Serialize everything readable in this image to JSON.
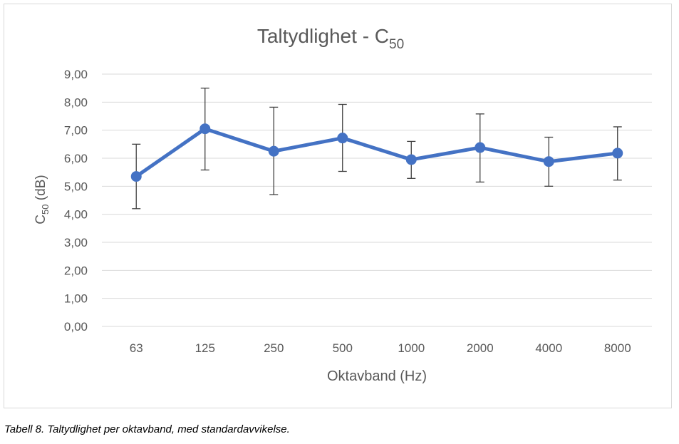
{
  "chart_data": {
    "type": "line",
    "title": "Taltydlighet - C",
    "title_subscript": "50",
    "ylabel": "C",
    "ylabel_subscript": "50",
    "ylabel_suffix": " (dB)",
    "xlabel": "Oktavband (Hz)",
    "categories": [
      "63",
      "125",
      "250",
      "500",
      "1000",
      "2000",
      "4000",
      "8000"
    ],
    "series": [
      {
        "values": [
          5.35,
          7.05,
          6.25,
          6.72,
          5.95,
          6.38,
          5.88,
          6.18
        ],
        "error_upper": [
          6.5,
          8.5,
          7.82,
          7.92,
          6.6,
          7.58,
          6.75,
          7.12
        ],
        "error_lower": [
          4.2,
          5.58,
          4.7,
          5.53,
          5.28,
          5.15,
          5.0,
          5.22
        ],
        "color": "#4472c4"
      }
    ],
    "ylim": [
      0,
      9
    ],
    "yticks": [
      "0,00",
      "1,00",
      "2,00",
      "3,00",
      "4,00",
      "5,00",
      "6,00",
      "7,00",
      "8,00",
      "9,00"
    ],
    "grid": true,
    "legend": "none"
  },
  "caption": "Tabell 8. Taltydlighet per oktavband, med standardavvikelse.",
  "colors": {
    "line": "#4472c4",
    "grid": "#d9d9d9",
    "text": "#595959",
    "errorbar": "#404040"
  }
}
